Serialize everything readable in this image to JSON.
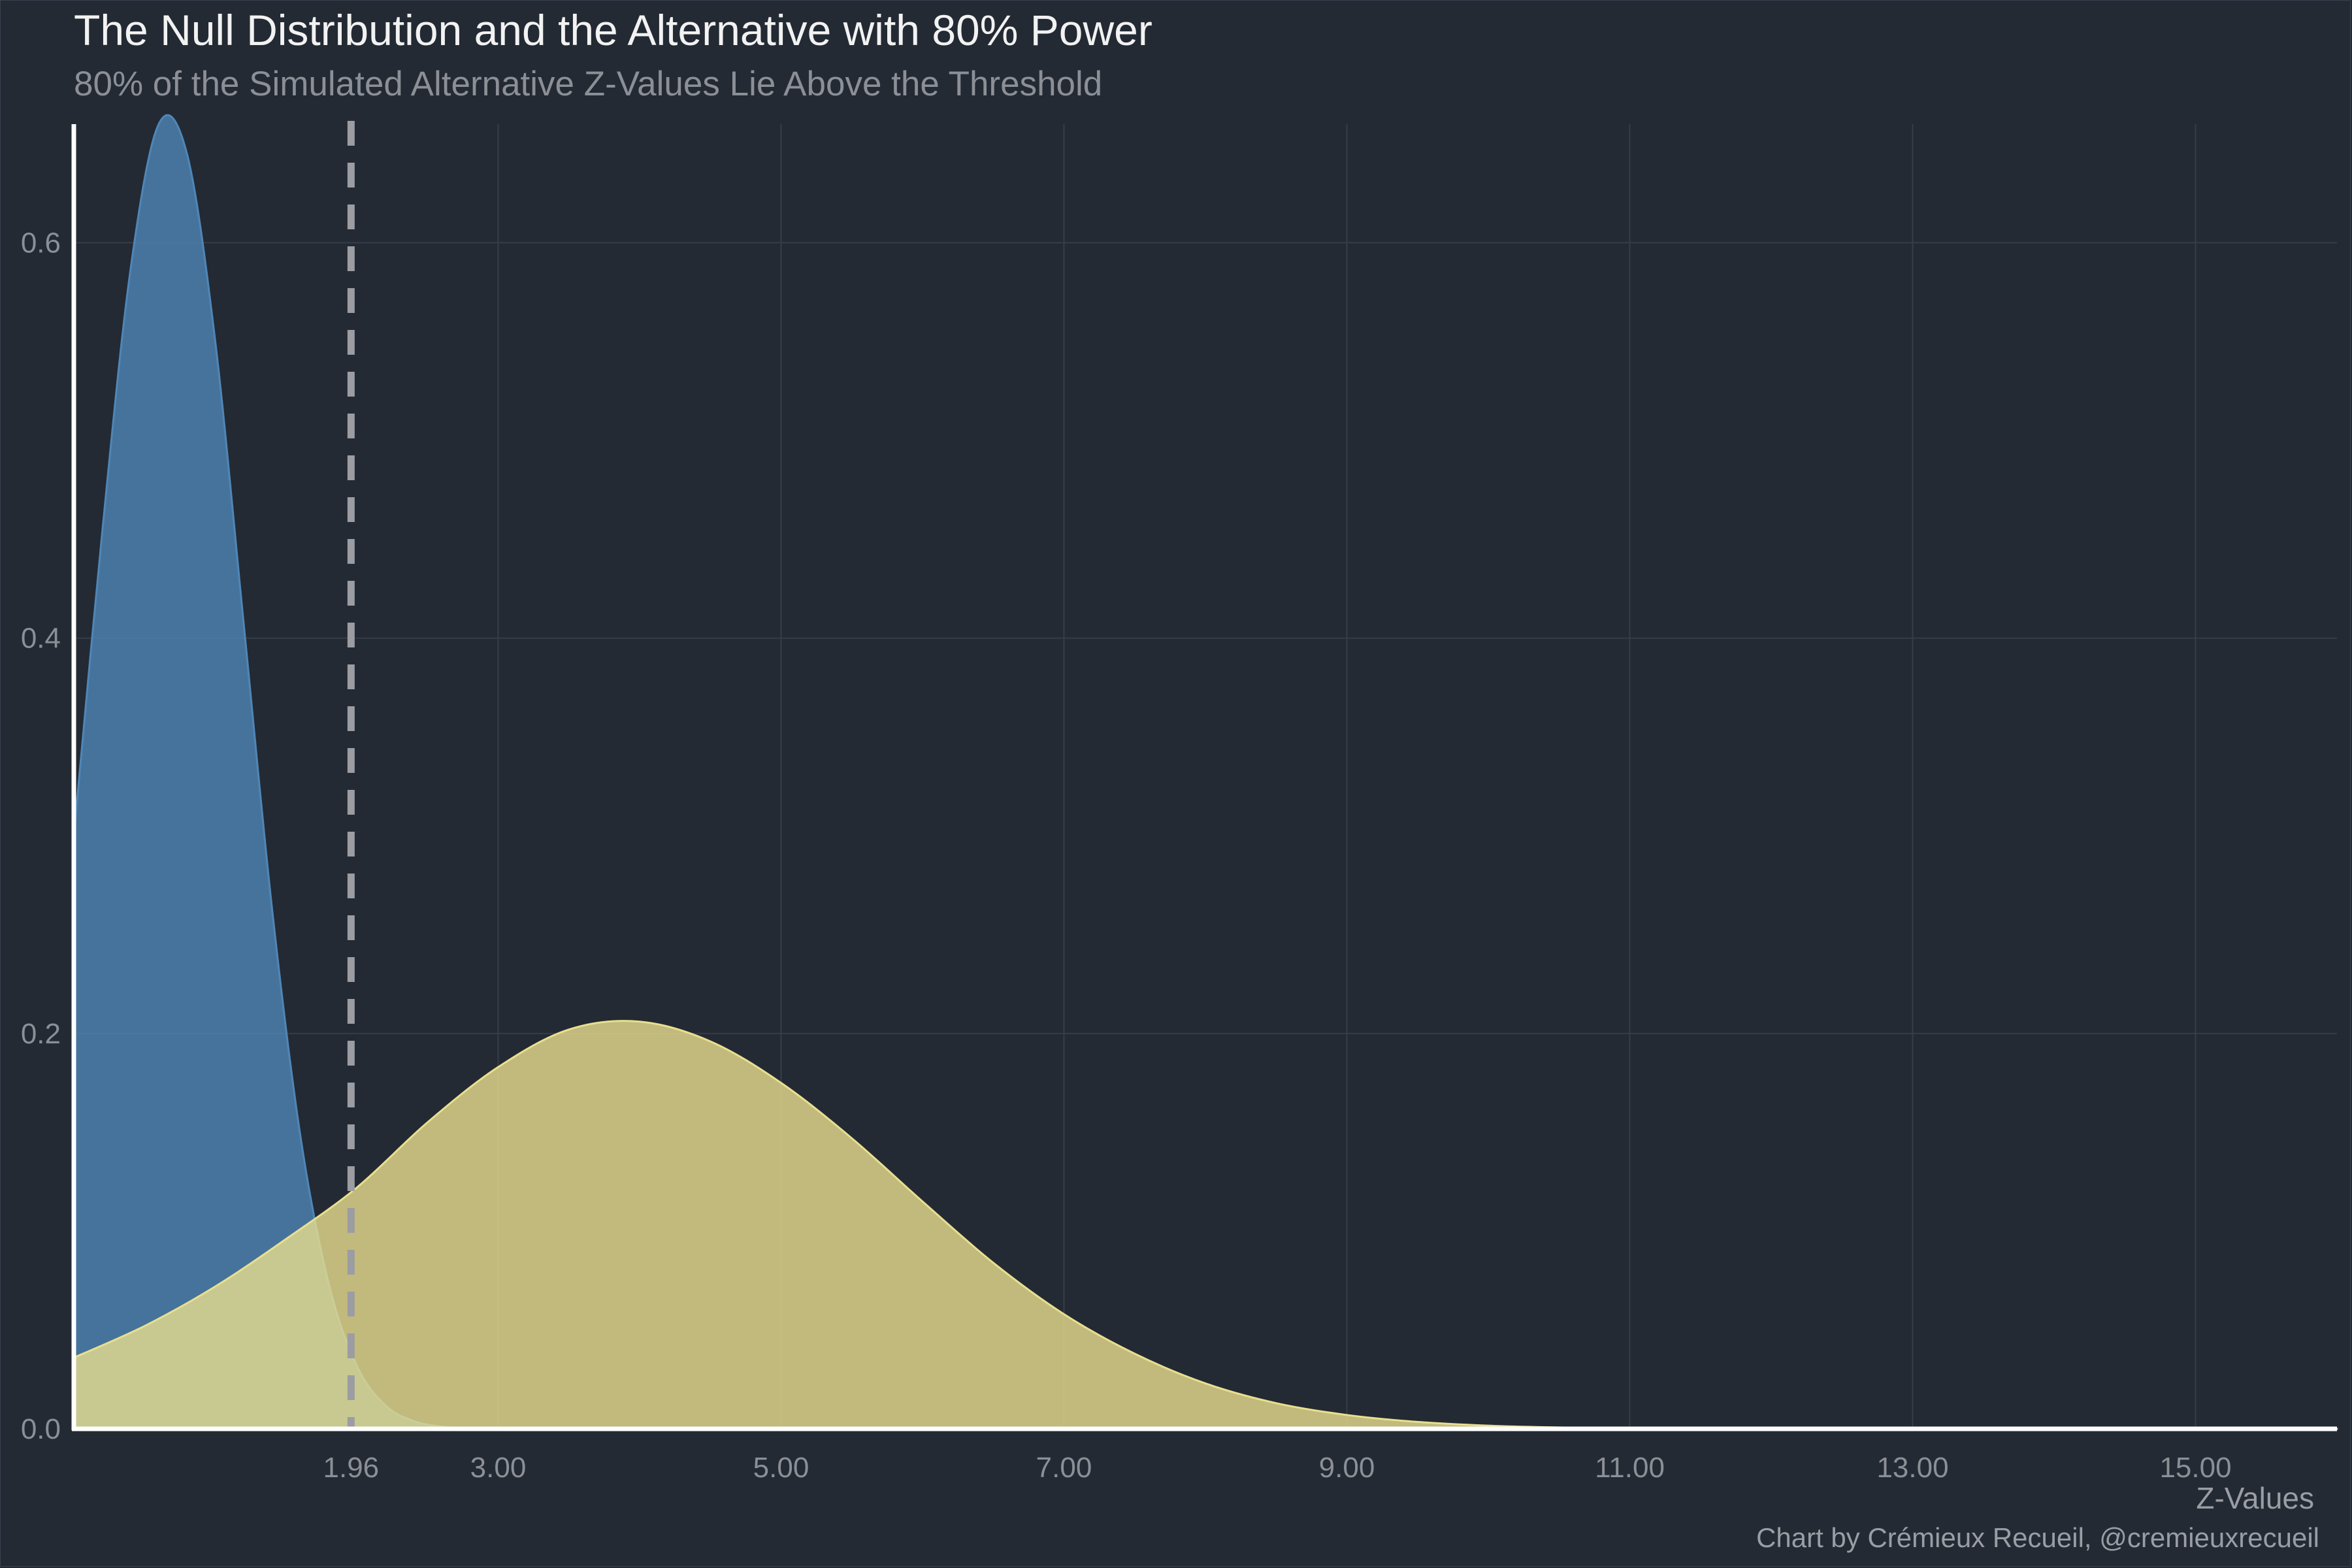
{
  "chart_data": {
    "type": "area",
    "title": "The Null Distribution and the Alternative with 80% Power",
    "subtitle": "80% of the Simulated Alternative Z-Values Lie Above the Threshold",
    "xlabel": "Z-Values",
    "ylabel": "",
    "caption": "Chart by Crémieux Recueil, @cremieuxrecueil",
    "xlim": [
      0.0,
      16.0
    ],
    "ylim": [
      0.0,
      0.66
    ],
    "x_ticks": [
      1.96,
      3.0,
      5.0,
      7.0,
      9.0,
      11.0,
      13.0,
      15.0
    ],
    "x_tick_labels": [
      "1.96",
      "3.00",
      "5.00",
      "7.00",
      "9.00",
      "11.00",
      "13.00",
      "15.00"
    ],
    "y_ticks": [
      0.0,
      0.2,
      0.4,
      0.6
    ],
    "y_tick_labels": [
      "0.0",
      "0.2",
      "0.4",
      "0.6"
    ],
    "threshold": 1.96,
    "grid": true,
    "series": [
      {
        "color": "#4f86b7",
        "x": [
          0.0,
          0.2,
          0.4,
          0.6,
          0.8,
          1.0,
          1.2,
          1.4,
          1.6,
          1.8,
          2.0,
          2.2,
          2.4,
          2.6,
          2.8,
          3.0,
          3.2,
          3.5,
          4.0
        ],
        "y": [
          0.3,
          0.453,
          0.586,
          0.66,
          0.645,
          0.55,
          0.408,
          0.264,
          0.149,
          0.074,
          0.032,
          0.012,
          0.004,
          0.0011,
          0.0003,
          0.0001,
          0.0,
          0.0,
          0.0
        ]
      },
      {
        "color": "#e8df8f",
        "x": [
          0.0,
          0.5,
          1.0,
          1.5,
          2.0,
          2.5,
          3.0,
          3.5,
          4.0,
          4.5,
          5.0,
          5.5,
          6.0,
          6.5,
          7.0,
          7.5,
          8.0,
          8.5,
          9.0,
          9.5,
          10.0,
          10.5,
          11.0,
          12.0,
          13.0,
          14.0,
          15.0,
          16.0
        ],
        "y": [
          0.036,
          0.052,
          0.072,
          0.096,
          0.122,
          0.155,
          0.183,
          0.202,
          0.206,
          0.196,
          0.175,
          0.147,
          0.115,
          0.084,
          0.058,
          0.038,
          0.023,
          0.013,
          0.007,
          0.0035,
          0.0016,
          0.0007,
          0.0003,
          5e-05,
          0.0,
          0.0,
          0.0,
          0.0
        ]
      }
    ]
  }
}
